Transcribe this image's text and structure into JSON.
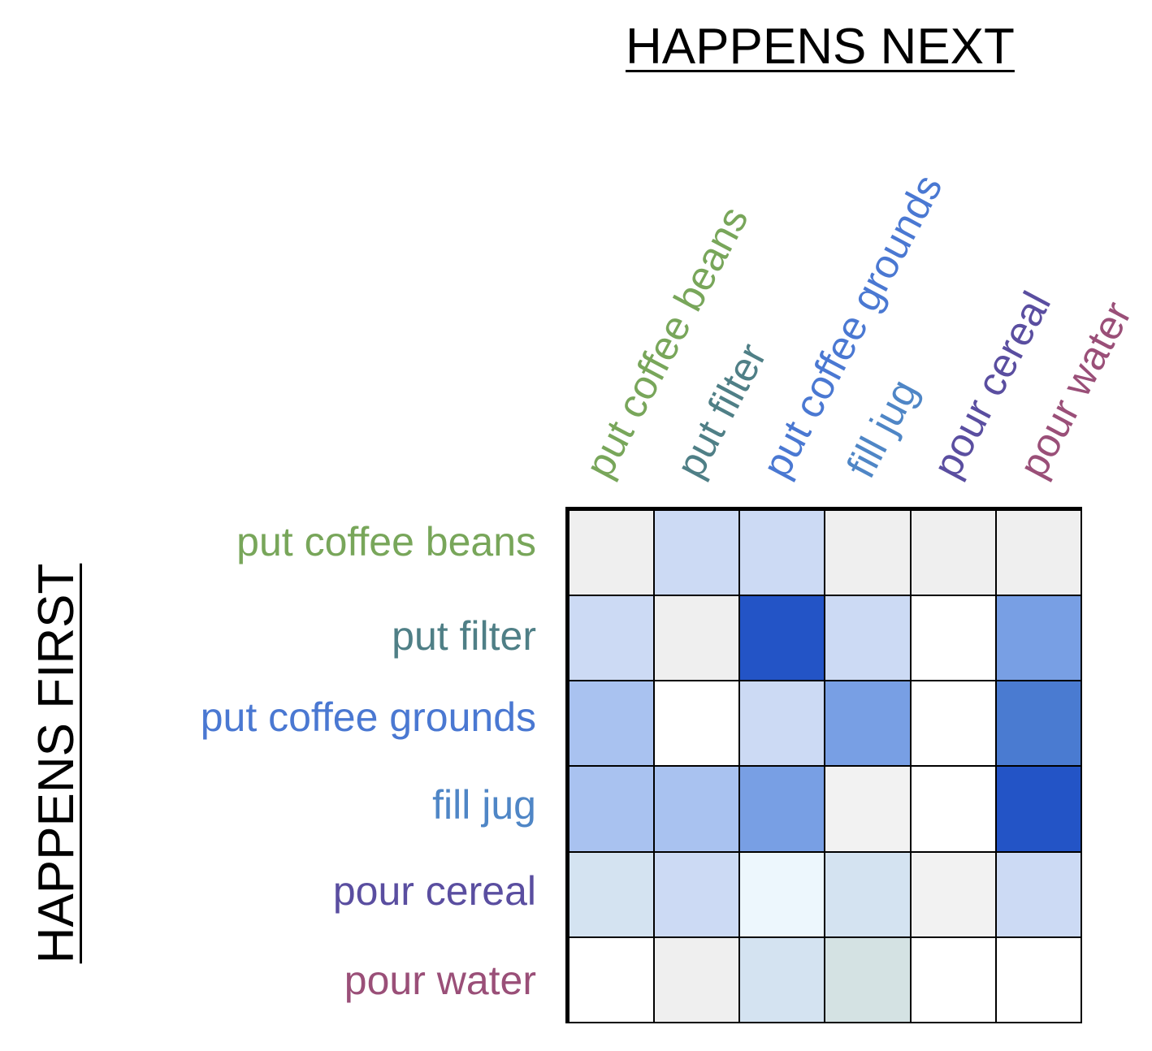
{
  "title_top": "HAPPENS NEXT",
  "title_side": "HAPPENS FIRST",
  "labels": [
    {
      "text": "put coffee beans",
      "color": "#78a65a"
    },
    {
      "text": "put filter",
      "color": "#4f7f86"
    },
    {
      "text": "put coffee grounds",
      "color": "#4a78d2"
    },
    {
      "text": "fill jug",
      "color": "#4f86c6"
    },
    {
      "text": "pour cereal",
      "color": "#5a4ea0"
    },
    {
      "text": "pour water",
      "color": "#9a4f78"
    }
  ],
  "cells": [
    [
      "#efefef",
      "#ccdaf4",
      "#ccdaf4",
      "#efefef",
      "#efefef",
      "#efefef"
    ],
    [
      "#ccdaf4",
      "#efefef",
      "#2354c6",
      "#ccdaf4",
      "#ffffff",
      "#789fe4"
    ],
    [
      "#a9c2f0",
      "#ffffff",
      "#ccdaf4",
      "#789fe4",
      "#ffffff",
      "#4a7bd1"
    ],
    [
      "#a9c2f0",
      "#a9c2f0",
      "#789fe4",
      "#f2f2f2",
      "#ffffff",
      "#2354c6"
    ],
    [
      "#d4e3f1",
      "#ccdaf4",
      "#edf7fd",
      "#d4e3f1",
      "#f2f2f2",
      "#ccdaf4"
    ],
    [
      "#ffffff",
      "#efefef",
      "#d4e3f1",
      "#d4e2e3",
      "#ffffff",
      "#ffffff"
    ]
  ]
}
